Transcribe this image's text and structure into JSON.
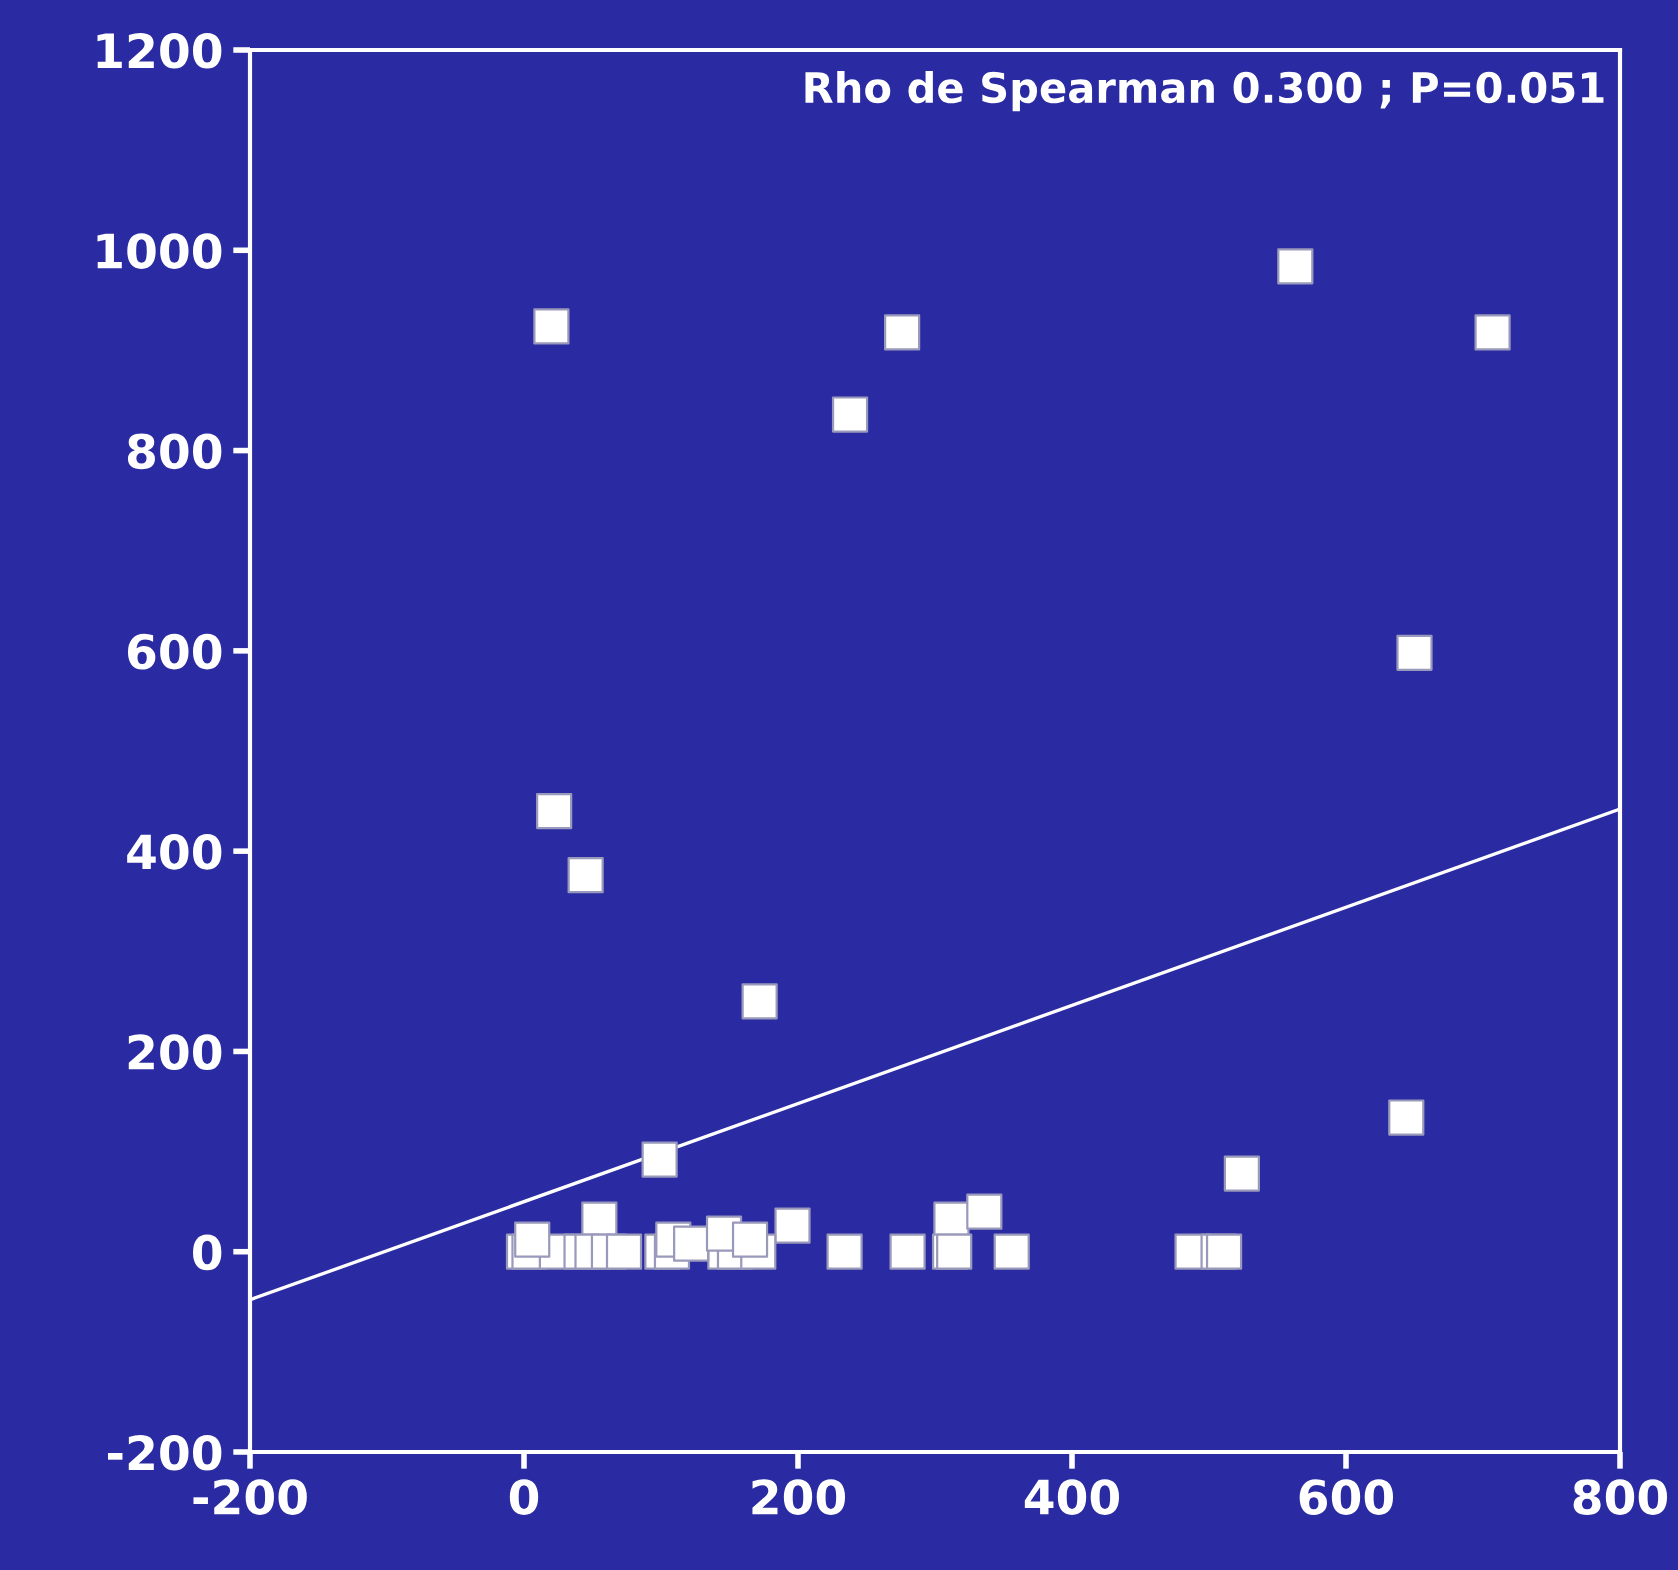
{
  "chart_data": {
    "type": "scatter",
    "grid": false,
    "legend": false,
    "xlim": [
      -200,
      800
    ],
    "xticks": [
      -200,
      0,
      200,
      400,
      600,
      800
    ],
    "ylim": [
      -200,
      1200
    ],
    "yticks": [
      -200,
      0,
      200,
      400,
      600,
      800,
      1000,
      1200
    ],
    "annotations": [
      "Rho de Spearman 0.300 ; P=0.051"
    ],
    "series": [
      {
        "marker": "square",
        "color": "#ffffff",
        "x": [
          20,
          276,
          238,
          563,
          707,
          650,
          22,
          45,
          172,
          644,
          524,
          99,
          55,
          196,
          312,
          336,
          0,
          4,
          24,
          42,
          50,
          62,
          73,
          101,
          108,
          147,
          154,
          171,
          234,
          280,
          311,
          314,
          356,
          488,
          507,
          511,
          6,
          109,
          122,
          146,
          165
        ],
        "values": [
          924,
          918,
          836,
          984,
          918,
          598,
          440,
          376,
          250,
          134,
          78,
          92,
          32,
          26,
          32,
          40,
          0,
          0,
          0,
          0,
          0,
          0,
          0,
          0,
          0,
          0,
          0,
          0,
          0,
          0,
          0,
          0,
          0,
          0,
          0,
          0,
          12,
          12,
          8,
          18,
          12
        ]
      },
      {
        "type": "line",
        "color": "#ffffff",
        "x": [
          -200,
          800
        ],
        "values": [
          -48,
          442
        ]
      }
    ]
  }
}
